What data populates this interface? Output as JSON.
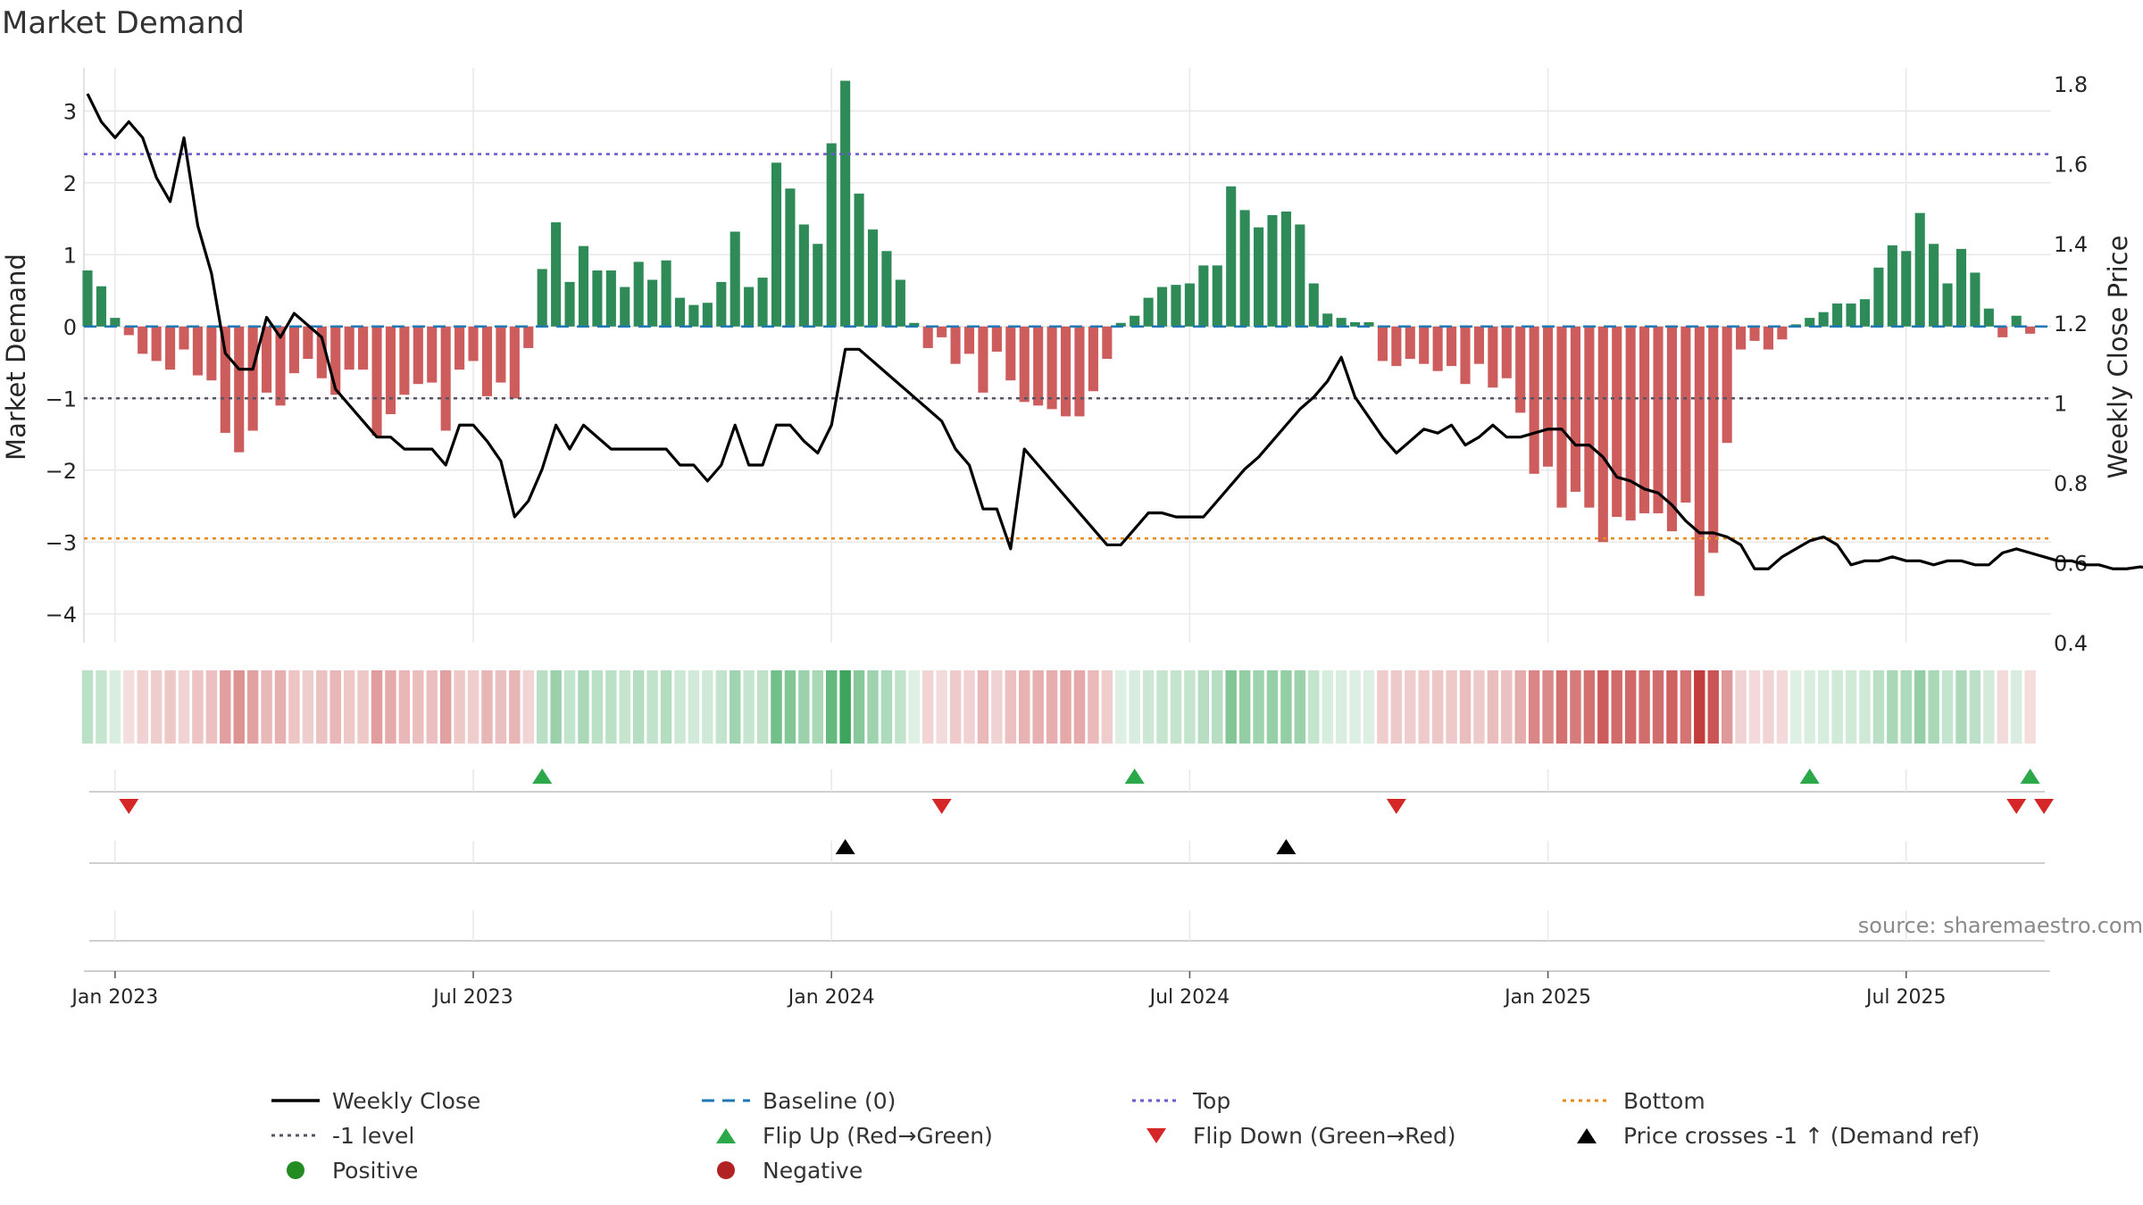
{
  "chart_data": {
    "type": "bar",
    "title": "Market Demand",
    "ylabel": "Market Demand",
    "y2label": "Weekly Close Price",
    "ylim": [
      -4.4,
      3.6
    ],
    "y2lim": [
      0.4,
      1.84
    ],
    "yticks": [
      3,
      2,
      1,
      0,
      -1,
      -2,
      -3,
      -4
    ],
    "yticklabels": [
      "3",
      "2",
      "1",
      "0",
      "−1",
      "−2",
      "−3",
      "−4"
    ],
    "y2ticks": [
      1.8,
      1.6,
      1.4,
      1.2,
      1.0,
      0.8,
      0.6,
      0.4
    ],
    "y2ticklabels": [
      "1.8",
      "1.6",
      "1.4",
      "1.2",
      "1",
      "0.8",
      "0.6",
      "0.4"
    ],
    "xticks": [
      {
        "week": 2,
        "label": "Jan 2023"
      },
      {
        "week": 28,
        "label": "Jul 2023"
      },
      {
        "week": 54,
        "label": "Jan 2024"
      },
      {
        "week": 80,
        "label": "Jul 2024"
      },
      {
        "week": 106,
        "label": "Jan 2025"
      },
      {
        "week": 132,
        "label": "Jul 2025"
      }
    ],
    "reference_lines": {
      "top": 2.4,
      "bottom": -2.95,
      "minus_one": -1,
      "baseline": 0
    },
    "demand": [
      0.78,
      0.56,
      0.12,
      -0.12,
      -0.38,
      -0.48,
      -0.6,
      -0.32,
      -0.68,
      -0.75,
      -1.48,
      -1.75,
      -1.45,
      -0.92,
      -1.1,
      -0.65,
      -0.45,
      -0.72,
      -0.95,
      -0.6,
      -0.6,
      -1.52,
      -1.22,
      -0.95,
      -0.8,
      -0.78,
      -1.45,
      -0.6,
      -0.48,
      -0.97,
      -0.78,
      -1.0,
      -0.3,
      0.8,
      1.45,
      0.62,
      1.12,
      0.78,
      0.78,
      0.55,
      0.9,
      0.65,
      0.92,
      0.4,
      0.3,
      0.33,
      0.62,
      1.32,
      0.55,
      0.68,
      2.28,
      1.92,
      1.42,
      1.15,
      2.55,
      3.42,
      1.85,
      1.35,
      1.05,
      0.65,
      0.05,
      -0.3,
      -0.15,
      -0.52,
      -0.38,
      -0.92,
      -0.35,
      -0.75,
      -1.05,
      -1.1,
      -1.15,
      -1.25,
      -1.25,
      -0.9,
      -0.45,
      0.05,
      0.15,
      0.4,
      0.55,
      0.58,
      0.6,
      0.85,
      0.85,
      1.95,
      1.62,
      1.38,
      1.55,
      1.6,
      1.42,
      0.6,
      0.18,
      0.12,
      0.06,
      0.06,
      -0.48,
      -0.55,
      -0.45,
      -0.52,
      -0.62,
      -0.55,
      -0.8,
      -0.52,
      -0.85,
      -0.72,
      -1.2,
      -2.05,
      -1.95,
      -2.52,
      -2.3,
      -2.52,
      -3.0,
      -2.65,
      -2.7,
      -2.6,
      -2.6,
      -2.85,
      -2.45,
      -3.75,
      -3.15,
      -1.62,
      -0.32,
      -0.2,
      -0.32,
      -0.18,
      0.03,
      0.12,
      0.2,
      0.32,
      0.32,
      0.38,
      0.82,
      1.13,
      1.05,
      1.58,
      1.15,
      0.6,
      1.08,
      0.75,
      0.25,
      -0.15,
      0.15,
      -0.1
    ],
    "close": [
      1.775,
      1.705,
      1.665,
      1.705,
      1.665,
      1.565,
      1.505,
      1.665,
      1.445,
      1.325,
      1.125,
      1.085,
      1.085,
      1.215,
      1.165,
      1.225,
      1.195,
      1.165,
      1.035,
      0.995,
      0.955,
      0.915,
      0.915,
      0.885,
      0.885,
      0.885,
      0.845,
      0.945,
      0.945,
      0.905,
      0.855,
      0.715,
      0.755,
      0.835,
      0.945,
      0.885,
      0.945,
      0.915,
      0.885,
      0.885,
      0.885,
      0.885,
      0.885,
      0.845,
      0.845,
      0.805,
      0.845,
      0.945,
      0.845,
      0.845,
      0.945,
      0.945,
      0.905,
      0.875,
      0.945,
      1.135,
      1.135,
      1.105,
      1.075,
      1.045,
      1.015,
      0.985,
      0.955,
      0.885,
      0.845,
      0.735,
      0.735,
      0.635,
      0.885,
      0.845,
      0.805,
      0.765,
      0.725,
      0.685,
      0.645,
      0.645,
      0.685,
      0.725,
      0.725,
      0.715,
      0.715,
      0.715,
      0.755,
      0.795,
      0.835,
      0.865,
      0.905,
      0.945,
      0.985,
      1.015,
      1.055,
      1.115,
      1.015,
      0.965,
      0.915,
      0.875,
      0.905,
      0.935,
      0.925,
      0.945,
      0.895,
      0.915,
      0.945,
      0.915,
      0.915,
      0.925,
      0.935,
      0.935,
      0.895,
      0.895,
      0.865,
      0.815,
      0.805,
      0.785,
      0.775,
      0.745,
      0.705,
      0.675,
      0.675,
      0.665,
      0.645,
      0.585,
      0.585,
      0.615,
      0.635,
      0.655,
      0.665,
      0.645,
      0.595,
      0.605,
      0.605,
      0.615,
      0.605,
      0.605,
      0.595,
      0.605,
      0.605,
      0.595,
      0.595,
      0.625,
      0.635,
      0.625,
      0.615,
      0.605,
      0.605,
      0.595,
      0.595,
      0.585,
      0.585,
      0.59,
      0.585
    ],
    "flip_up_weeks": [
      33,
      76,
      125,
      141
    ],
    "flip_down_weeks": [
      3,
      62,
      95,
      140,
      142
    ],
    "price_cross_weeks": [
      55,
      87
    ],
    "legend": [
      {
        "label": "Weekly Close",
        "symbol": "line",
        "color": "#000000"
      },
      {
        "label": "Baseline (0)",
        "symbol": "dash",
        "color": "#1f77b4"
      },
      {
        "label": "Top",
        "symbol": "dotted",
        "color": "#6a5acd"
      },
      {
        "label": "Bottom",
        "symbol": "dotted",
        "color": "#e8891b"
      },
      {
        "label": "-1 level",
        "symbol": "dotted",
        "color": "#555566"
      },
      {
        "label": "Flip Up (Red→Green)",
        "symbol": "triangle-up",
        "color": "#2aa84a"
      },
      {
        "label": "Flip Down (Green→Red)",
        "symbol": "triangle-down",
        "color": "#d62728"
      },
      {
        "label": "Price crosses -1 ↑ (Demand ref)",
        "symbol": "triangle-up",
        "color": "#000000"
      },
      {
        "label": "Positive",
        "symbol": "dot",
        "color": "#228b22"
      },
      {
        "label": "Negative",
        "symbol": "dot",
        "color": "#b22222"
      }
    ],
    "source": "source: sharemaestro.com"
  },
  "colors": {
    "positive_bar": "#2e8b57",
    "negative_bar": "#cd5c5c",
    "grid": "#e8e8e8",
    "axis_line": "#d9d9d9"
  }
}
